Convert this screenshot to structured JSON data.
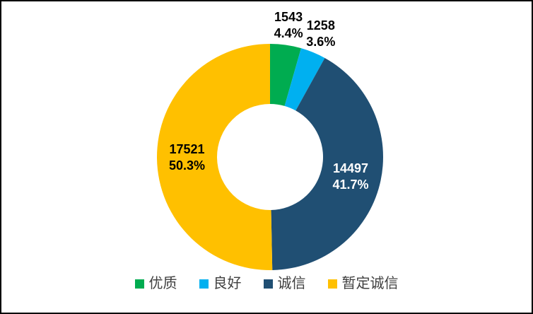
{
  "chart_data": {
    "type": "pie",
    "subtype": "donut",
    "title": "",
    "categories": [
      "优质",
      "良好",
      "诚信",
      "暂定诚信"
    ],
    "values": [
      1543,
      1258,
      14497,
      17521
    ],
    "labels": [
      {
        "value": "1543",
        "percent": "4.4%",
        "placement": "outside",
        "text_color": "#000000"
      },
      {
        "value": "1258",
        "percent": "3.6%",
        "placement": "outside",
        "text_color": "#000000"
      },
      {
        "value": "14497",
        "percent": "41.7%",
        "placement": "inside",
        "text_color": "#FFFFFF"
      },
      {
        "value": "17521",
        "percent": "50.3%",
        "placement": "inside",
        "text_color": "#000000"
      }
    ],
    "colors": [
      "#00AC50",
      "#00B0F0",
      "#204F73",
      "#FFC000"
    ],
    "start_angle_deg": 0,
    "direction": "clockwise",
    "hole_ratio": 0.47,
    "grid": false,
    "legend_position": "bottom",
    "legend": [
      "优质",
      "良好",
      "诚信",
      "暂定诚信"
    ]
  }
}
